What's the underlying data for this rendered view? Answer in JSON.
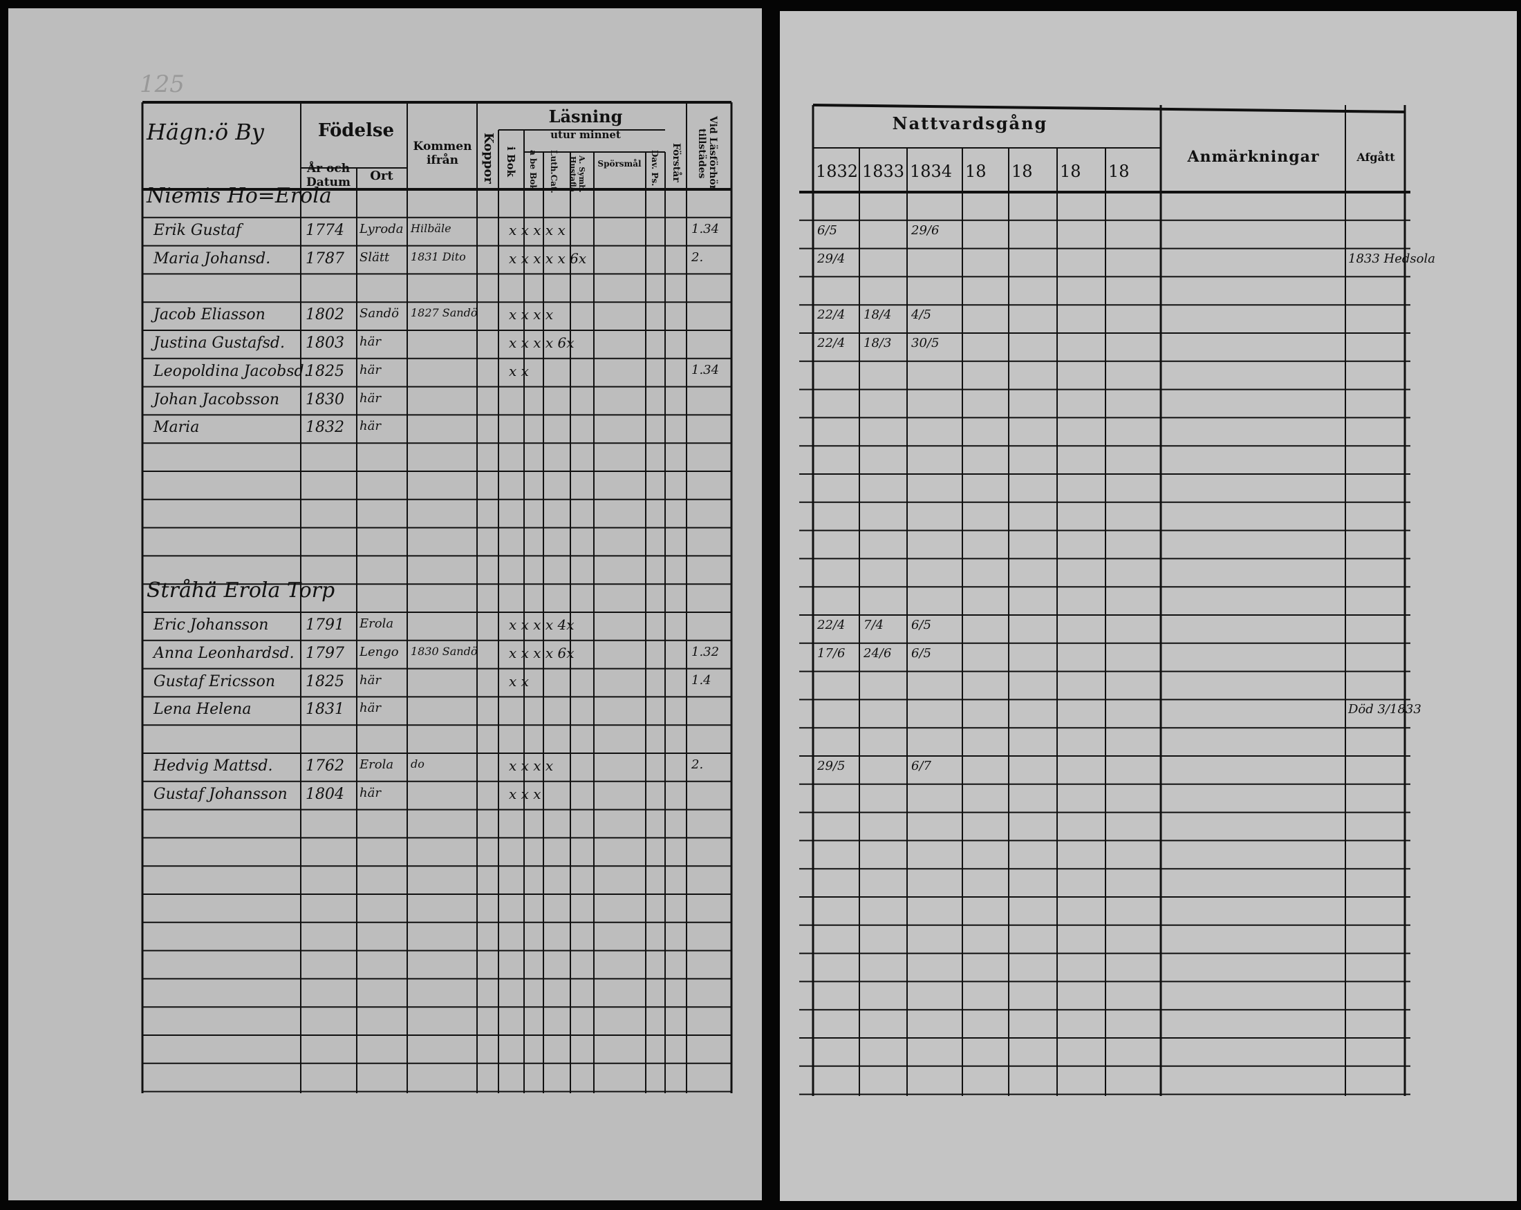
{
  "left_page": {
    "page_number": "125",
    "headers": {
      "foedelse": "Födelse",
      "ar_och_datum": "År och Datum",
      "ort": "Ort",
      "kommen_ifran": "Kommen ifrån",
      "koppor": "Koppor",
      "lasning": "Läsning",
      "utur_minnet": "utur minnet",
      "i_bok": "i Bok",
      "a_be_bok": "a be Bok",
      "luth_cat": "Luth.Cat.",
      "a_symb_hustafla": "A. Symb. Hustafla",
      "sporsmal": "Spörsmål",
      "dav_ps": "Dav. Ps.",
      "forstar": "Förstår",
      "vid_lasforhor": "Vid Läsförhör tillstädes"
    },
    "village": "Hägn:ö By",
    "sections": [
      {
        "title": "Niemis Ho=Erola",
        "row": 0
      },
      {
        "title": "Stråhä Erola Torp",
        "row": 14
      }
    ],
    "entries": [
      {
        "row": 1,
        "name": "Erik Gustaf",
        "born": "1774",
        "place": "Lyroda",
        "from": "Hilbäle",
        "marks": "x  x  x  x  x",
        "note": "1.34"
      },
      {
        "row": 2,
        "name": "Maria Johansd.",
        "born": "1787",
        "place": "Slätt",
        "from": "1831 Dito",
        "marks": "x x x x x 6x",
        "note": "2."
      },
      {
        "row": 4,
        "name": "Jacob Eliasson",
        "born": "1802",
        "place": "Sandö",
        "from": "1827 Sandö",
        "marks": "x  x  x  x",
        "note": ""
      },
      {
        "row": 5,
        "name": "Justina Gustafsd.",
        "born": "1803",
        "place": "här",
        "from": "",
        "marks": "x x x x 6x",
        "note": ""
      },
      {
        "row": 6,
        "name": "Leopoldina Jacobsd.",
        "born": "1825",
        "place": "här",
        "from": "",
        "marks": "x  x",
        "note": "1.34"
      },
      {
        "row": 7,
        "name": "Johan Jacobsson",
        "born": "1830",
        "place": "här",
        "from": "",
        "marks": "",
        "note": ""
      },
      {
        "row": 8,
        "name": "Maria",
        "born": "1832",
        "place": "här",
        "from": "",
        "marks": "",
        "note": ""
      },
      {
        "row": 15,
        "name": "Eric Johansson",
        "born": "1791",
        "place": "Erola",
        "from": "",
        "marks": "x x x x 4x",
        "note": ""
      },
      {
        "row": 16,
        "name": "Anna Leonhardsd.",
        "born": "1797",
        "place": "Lengo",
        "from": "1830 Sandö",
        "marks": "x x x x 6x",
        "note": "1.32"
      },
      {
        "row": 17,
        "name": "Gustaf Ericsson",
        "born": "1825",
        "place": "här",
        "from": "",
        "marks": "x  x",
        "note": "1.4"
      },
      {
        "row": 18,
        "name": "Lena Helena",
        "born": "1831",
        "place": "här",
        "from": "",
        "marks": "",
        "note": ""
      },
      {
        "row": 20,
        "name": "Hedvig Mattsd.",
        "born": "1762",
        "place": "Erola",
        "from": "do",
        "marks": "x x x x",
        "note": "2."
      },
      {
        "row": 21,
        "name": "Gustaf Johansson",
        "born": "1804",
        "place": "här",
        "from": "",
        "marks": "x x x",
        "note": ""
      }
    ]
  },
  "right_page": {
    "headers": {
      "nattvardsgang": "Nattvardsgång",
      "years": [
        "1832",
        "1833",
        "1834",
        "18",
        "18",
        "18",
        "18"
      ],
      "anmarkningar": "Anmärkningar",
      "afgatt": "Afgått"
    },
    "entries": [
      {
        "row": 1,
        "y1832": "6/5",
        "y1833": "",
        "y1834": "29/6"
      },
      {
        "row": 2,
        "y1832": "29/4",
        "y1833": "",
        "y1834": "",
        "afgatt": "1833 Hedsola"
      },
      {
        "row": 4,
        "y1832": "22/4",
        "y1833": "18/4",
        "y1834": "4/5"
      },
      {
        "row": 5,
        "y1832": "22/4",
        "y1833": "18/3",
        "y1834": "30/5"
      },
      {
        "row": 15,
        "y1832": "22/4",
        "y1833": "7/4",
        "y1834": "6/5"
      },
      {
        "row": 16,
        "y1832": "17/6",
        "y1833": "24/6",
        "y1834": "6/5"
      },
      {
        "row": 18,
        "y1832": "",
        "y1833": "",
        "y1834": "",
        "afgatt": "Död 3/1833"
      },
      {
        "row": 20,
        "y1832": "29/5",
        "y1833": "",
        "y1834": "6/7"
      }
    ]
  }
}
